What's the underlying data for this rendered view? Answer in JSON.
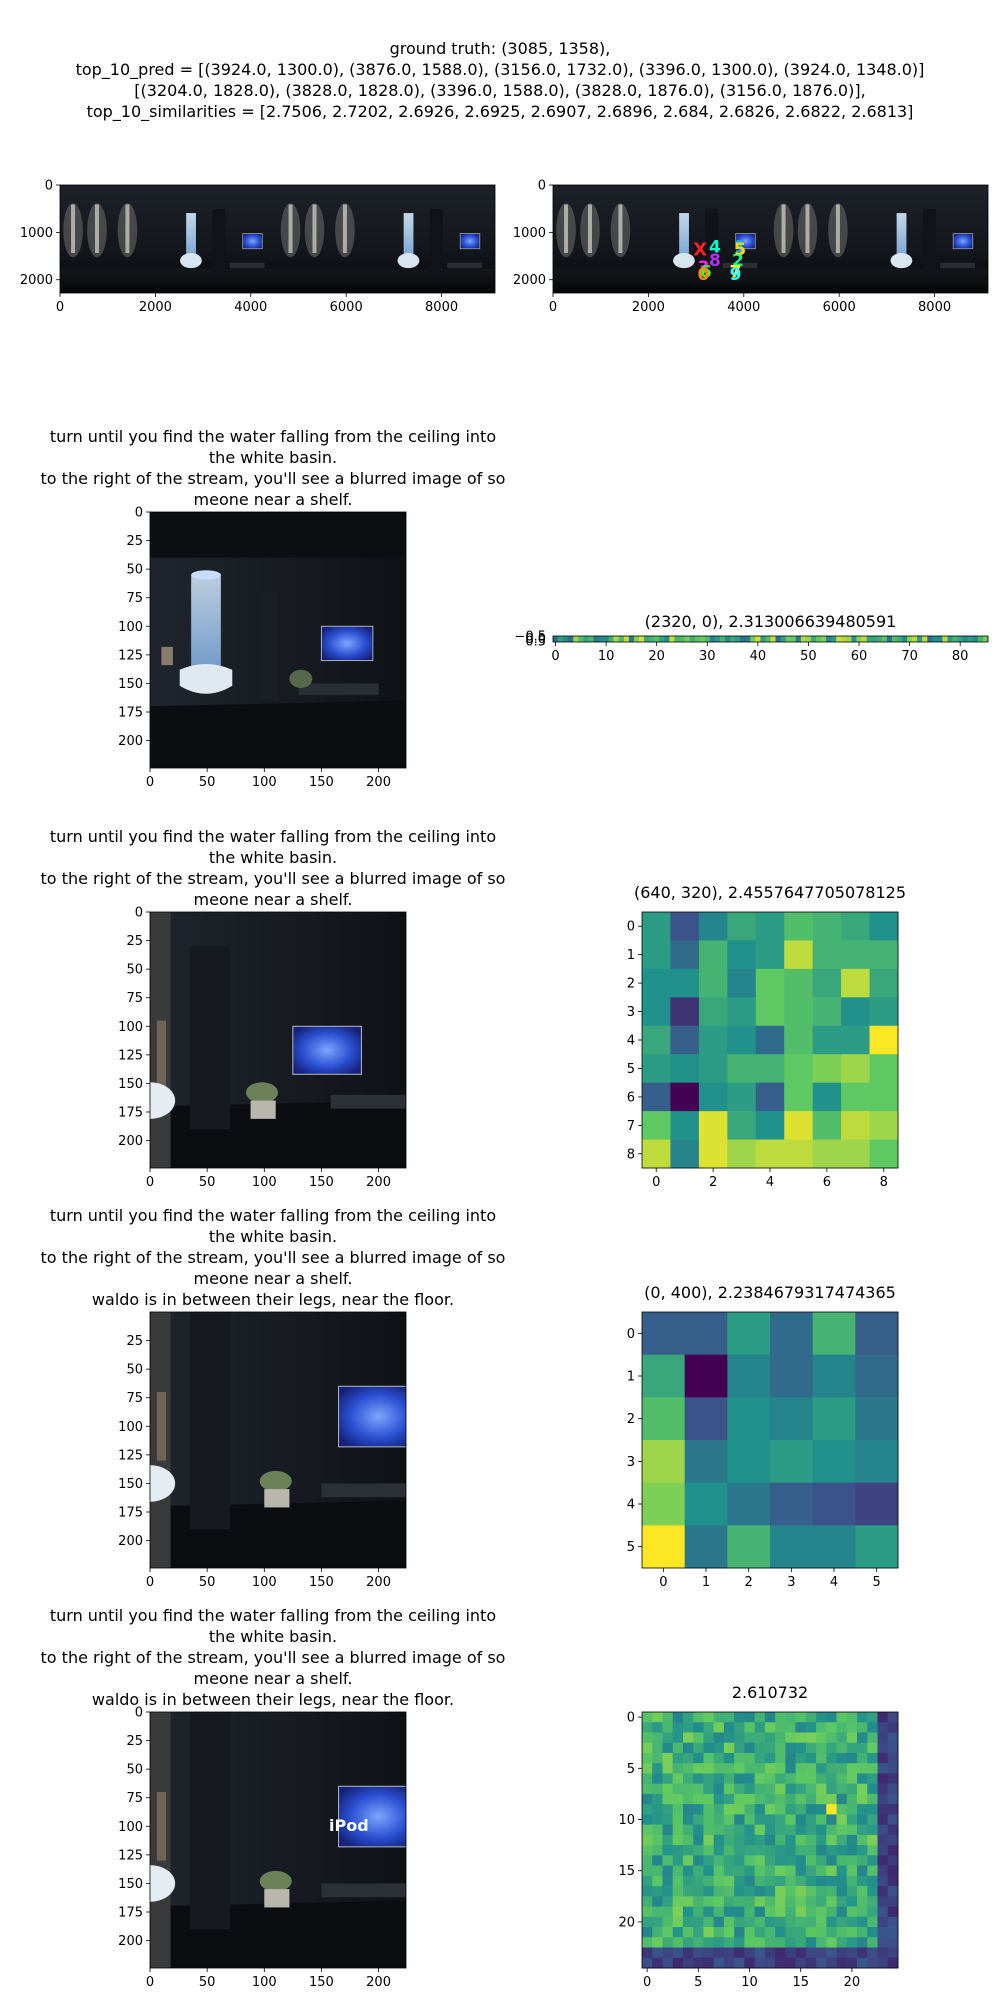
{
  "header": {
    "lines": [
      "ground truth: (3085, 1358),",
      "top_10_pred = [(3924.0, 1300.0), (3876.0, 1588.0), (3156.0, 1732.0), (3396.0, 1300.0), (3924.0, 1348.0)]",
      "[(3204.0, 1828.0), (3828.0, 1828.0), (3396.0, 1588.0), (3828.0, 1876.0), (3156.0, 1876.0)],",
      "top_10_similarities = [2.7506, 2.7202, 2.6926, 2.6925, 2.6907, 2.6896, 2.684, 2.6826, 2.6822, 2.6813]"
    ]
  },
  "chart_data": [
    {
      "type": "image",
      "panel": "panorama-left",
      "xticks": [
        "0",
        "2000",
        "4000",
        "6000",
        "8000"
      ],
      "yticks": [
        "0",
        "1000",
        "2000"
      ],
      "xlim": [
        0,
        9120
      ],
      "ylim": [
        0,
        2280
      ]
    },
    {
      "type": "image",
      "panel": "panorama-right-with-predictions",
      "xticks": [
        "0",
        "2000",
        "4000",
        "6000",
        "8000"
      ],
      "yticks": [
        "0",
        "1000",
        "2000"
      ],
      "xlim": [
        0,
        9120
      ],
      "ylim": [
        0,
        2280
      ],
      "ground_truth": {
        "x": 3085,
        "y": 1358,
        "marker": "X",
        "color": "#ff2020"
      },
      "predictions": [
        {
          "label": "1",
          "x": 3924,
          "y": 1300,
          "color": "#00b4ff"
        },
        {
          "label": "2",
          "x": 3876,
          "y": 1588,
          "color": "#00ff90"
        },
        {
          "label": "3",
          "x": 3156,
          "y": 1732,
          "color": "#ff20ff"
        },
        {
          "label": "4",
          "x": 3396,
          "y": 1300,
          "color": "#00ffd0"
        },
        {
          "label": "5",
          "x": 3924,
          "y": 1348,
          "color": "#ffd700"
        },
        {
          "label": "6",
          "x": 3204,
          "y": 1828,
          "color": "#30ff30"
        },
        {
          "label": "7",
          "x": 3828,
          "y": 1828,
          "color": "#ffff30"
        },
        {
          "label": "8",
          "x": 3396,
          "y": 1588,
          "color": "#b030ff"
        },
        {
          "label": "9",
          "x": 3828,
          "y": 1876,
          "color": "#30ffff"
        },
        {
          "label": "0",
          "x": 3156,
          "y": 1876,
          "color": "#ff8c00"
        }
      ]
    },
    {
      "type": "image",
      "panel": "view-1",
      "title": "turn until you find the water falling from the ceiling into\nthe white basin.\nto the right of the stream, you'll see a blurred image of so\nmeone near a shelf.",
      "xticks": [
        "0",
        "50",
        "100",
        "150",
        "200"
      ],
      "yticks": [
        "0",
        "25",
        "50",
        "75",
        "100",
        "125",
        "150",
        "175",
        "200"
      ]
    },
    {
      "type": "heatmap",
      "panel": "heatmap-1",
      "title": "(2320, 0), 2.313006639480591",
      "xticks": [
        "0",
        "10",
        "20",
        "30",
        "40",
        "50",
        "60",
        "70",
        "80"
      ],
      "yticks": [
        "−0.5",
        "0.0",
        "0.5"
      ],
      "rows": 1,
      "cols": 86
    },
    {
      "type": "image",
      "panel": "view-2",
      "title": "turn until you find the water falling from the ceiling into\nthe white basin.\nto the right of the stream, you'll see a blurred image of so\nmeone near a shelf.",
      "xticks": [
        "0",
        "50",
        "100",
        "150",
        "200"
      ],
      "yticks": [
        "0",
        "25",
        "50",
        "75",
        "100",
        "125",
        "150",
        "175",
        "200"
      ]
    },
    {
      "type": "heatmap",
      "panel": "heatmap-2",
      "title": "(640, 320), 2.4557647705078125",
      "xticks": [
        "0",
        "2",
        "4",
        "6",
        "8"
      ],
      "yticks": [
        "0",
        "1",
        "2",
        "3",
        "4",
        "5",
        "6",
        "7",
        "8"
      ],
      "values": [
        [
          0.55,
          0.25,
          0.45,
          0.6,
          0.55,
          0.7,
          0.65,
          0.6,
          0.5
        ],
        [
          0.55,
          0.35,
          0.65,
          0.5,
          0.55,
          0.9,
          0.65,
          0.65,
          0.65
        ],
        [
          0.5,
          0.5,
          0.65,
          0.45,
          0.75,
          0.7,
          0.6,
          0.9,
          0.6
        ],
        [
          0.5,
          0.15,
          0.6,
          0.55,
          0.75,
          0.7,
          0.65,
          0.5,
          0.55
        ],
        [
          0.6,
          0.3,
          0.55,
          0.5,
          0.35,
          0.7,
          0.55,
          0.55,
          1.0
        ],
        [
          0.55,
          0.5,
          0.55,
          0.65,
          0.65,
          0.75,
          0.8,
          0.85,
          0.75
        ],
        [
          0.3,
          0.0,
          0.5,
          0.55,
          0.3,
          0.75,
          0.5,
          0.75,
          0.75
        ],
        [
          0.75,
          0.5,
          0.95,
          0.6,
          0.5,
          0.95,
          0.7,
          0.9,
          0.85
        ],
        [
          0.9,
          0.45,
          0.95,
          0.85,
          0.9,
          0.9,
          0.85,
          0.85,
          0.75
        ]
      ]
    },
    {
      "type": "image",
      "panel": "view-3",
      "title": "turn until you find the water falling from the ceiling into\nthe white basin.\nto the right of the stream, you'll see a blurred image of so\nmeone near a shelf.\nwaldo is in between their legs, near the floor.",
      "xticks": [
        "0",
        "50",
        "100",
        "150",
        "200"
      ],
      "yticks": [
        "25",
        "50",
        "75",
        "100",
        "125",
        "150",
        "175",
        "200"
      ]
    },
    {
      "type": "heatmap",
      "panel": "heatmap-3",
      "title": "(0, 400), 2.2384679317474365",
      "xticks": [
        "0",
        "1",
        "2",
        "3",
        "4",
        "5"
      ],
      "yticks": [
        "0",
        "1",
        "2",
        "3",
        "4",
        "5"
      ],
      "values": [
        [
          0.3,
          0.3,
          0.55,
          0.35,
          0.65,
          0.3
        ],
        [
          0.6,
          0.0,
          0.45,
          0.35,
          0.45,
          0.35
        ],
        [
          0.7,
          0.25,
          0.5,
          0.45,
          0.55,
          0.4
        ],
        [
          0.85,
          0.4,
          0.5,
          0.55,
          0.5,
          0.45
        ],
        [
          0.8,
          0.5,
          0.4,
          0.3,
          0.25,
          0.2
        ],
        [
          1.0,
          0.4,
          0.65,
          0.45,
          0.45,
          0.55
        ]
      ]
    },
    {
      "type": "image",
      "panel": "view-4",
      "title": "turn until you find the water falling from the ceiling into\nthe white basin.\nto the right of the stream, you'll see a blurred image of so\nmeone near a shelf.\nwaldo is in between their legs, near the floor.",
      "label_overlay": "iPod",
      "xticks": [
        "0",
        "50",
        "100",
        "150",
        "200"
      ],
      "yticks": [
        "0",
        "25",
        "50",
        "75",
        "100",
        "125",
        "150",
        "175",
        "200"
      ]
    },
    {
      "type": "heatmap",
      "panel": "heatmap-4",
      "title": "2.610732",
      "xticks": [
        "0",
        "5",
        "10",
        "15",
        "20"
      ],
      "yticks": [
        "0",
        "5",
        "10",
        "15",
        "20"
      ],
      "rows": 25,
      "cols": 25
    }
  ],
  "colors": {
    "viridis": [
      "#440154",
      "#3b528b",
      "#21918c",
      "#5ec962",
      "#fde725"
    ]
  }
}
